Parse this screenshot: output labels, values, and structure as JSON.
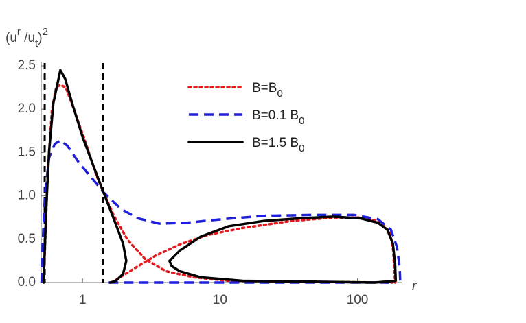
{
  "chart_data": {
    "type": "line",
    "y_label": "(u^r /u_t)^2",
    "x_label": "r",
    "xscale": "log",
    "xlim": [
      0.5,
      210
    ],
    "ylim": [
      0,
      2.5
    ],
    "xticks": [
      1,
      10,
      100
    ],
    "yticks": [
      {
        "value": 0,
        "label": "0.0"
      },
      0.5,
      {
        "value": 1,
        "label": "1.0"
      },
      1.5,
      {
        "value": 2,
        "label": "2.0"
      },
      2.5
    ],
    "vlines": [
      0.53,
      1.4
    ],
    "legend": "upper right",
    "series": [
      {
        "name": "B=B_0",
        "color": "#e3191e",
        "style": "dotted",
        "x": [
          0.521,
          0.533,
          0.558,
          0.598,
          0.642,
          0.689,
          0.756,
          0.869,
          1.06,
          1.26,
          1.42,
          1.69,
          2.13,
          2.86,
          4.05,
          6.45,
          11.6,
          33.0,
          179,
          null,
          1.63,
          2.01,
          2.54,
          3.4,
          5.11,
          8.18,
          14.6,
          33.0,
          66.5,
          106,
          147,
          173,
          182,
          188
        ],
        "values": [
          0,
          0.41,
          1.28,
          1.99,
          2.25,
          2.28,
          2.25,
          1.99,
          1.6,
          1.24,
          1.04,
          0.77,
          0.49,
          0.27,
          0.13,
          0.06,
          0.02,
          0.01,
          0,
          null,
          0,
          0.09,
          0.19,
          0.31,
          0.44,
          0.55,
          0.63,
          0.71,
          0.75,
          0.75,
          0.7,
          0.57,
          0.37,
          0
        ]
      },
      {
        "name": "B=0.1 B_0",
        "color": "#1f1fdc",
        "style": "dashed",
        "x": [
          0.503,
          0.514,
          0.533,
          0.571,
          0.627,
          0.689,
          0.774,
          0.943,
          1.19,
          1.42,
          1.9,
          2.54,
          3.61,
          5.75,
          10.3,
          20.7,
          46.8,
          94.5,
          141,
          175,
          194,
          203,
          205,
          null,
          1.55,
          5.0,
          20.0,
          80.0,
          170
        ],
        "values": [
          0,
          0.49,
          1.04,
          1.44,
          1.6,
          1.64,
          1.58,
          1.38,
          1.19,
          1.04,
          0.85,
          0.74,
          0.68,
          0.69,
          0.73,
          0.77,
          0.78,
          0.78,
          0.73,
          0.61,
          0.41,
          0.17,
          0,
          null,
          0,
          0,
          0,
          0,
          0
        ]
      },
      {
        "name": "B=1.5 B_0",
        "color": "#000000",
        "style": "solid",
        "x": [
          0.521,
          0.527,
          0.545,
          0.571,
          0.613,
          0.689,
          0.747,
          0.839,
          1.0,
          1.19,
          1.42,
          1.69,
          1.97,
          2.08,
          1.97,
          1.75,
          1.59,
          null,
          4.29,
          5.11,
          7.25,
          11.6,
          20.7,
          37.0,
          66.5,
          106,
          141,
          165,
          181,
          188,
          190,
          134,
          46.8,
          14.6,
          7.25,
          5.11,
          4.45,
          4.29
        ],
        "values": [
          0,
          0.25,
          0.89,
          1.52,
          2.07,
          2.45,
          2.35,
          2.07,
          1.68,
          1.36,
          1.04,
          0.73,
          0.45,
          0.25,
          0.1,
          0.02,
          0,
          null,
          0.25,
          0.37,
          0.53,
          0.65,
          0.71,
          0.74,
          0.76,
          0.74,
          0.69,
          0.61,
          0.45,
          0.21,
          0.02,
          0,
          0.01,
          0.02,
          0.06,
          0.13,
          0.19,
          0.25
        ]
      }
    ]
  }
}
